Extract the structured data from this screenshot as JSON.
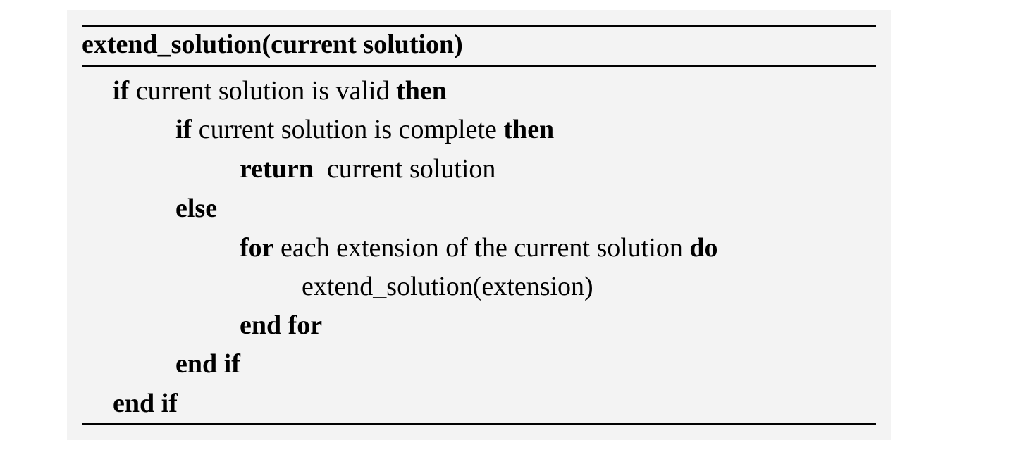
{
  "algorithm": {
    "title": "extend_solution(current solution)",
    "lines": [
      {
        "kw1": "if",
        "text": " current solution is valid ",
        "kw2": "then"
      },
      {
        "kw1": "if",
        "text": " current solution is complete ",
        "kw2": "then"
      },
      {
        "kw1": "return",
        "text": "  current solution",
        "kw2": ""
      },
      {
        "kw1": "else",
        "text": "",
        "kw2": ""
      },
      {
        "kw1": "for",
        "text": " each extension of the current solution ",
        "kw2": "do"
      },
      {
        "kw1": "",
        "text": "extend_solution(extension)",
        "kw2": ""
      },
      {
        "kw1": "end for",
        "text": "",
        "kw2": ""
      },
      {
        "kw1": "end if",
        "text": "",
        "kw2": ""
      },
      {
        "kw1": "end if",
        "text": "",
        "kw2": ""
      }
    ]
  }
}
